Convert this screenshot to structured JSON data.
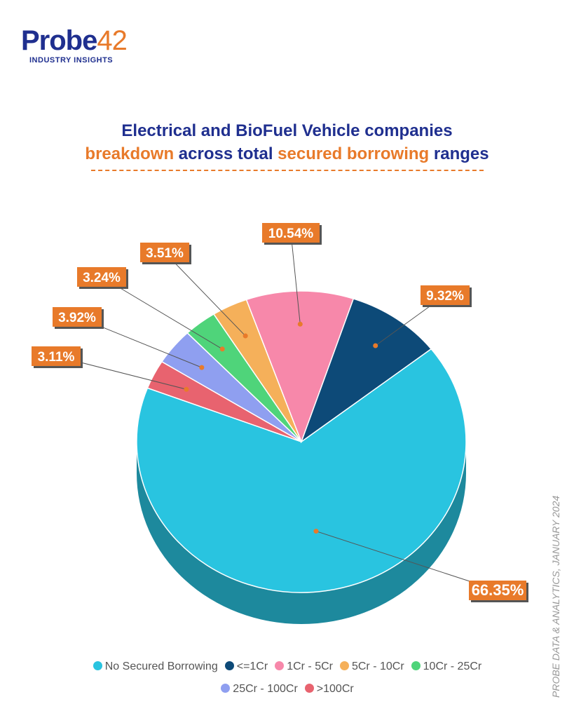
{
  "logo": {
    "name": "Probe",
    "number": "42",
    "tagline": "INDUSTRY INSIGHTS"
  },
  "title": {
    "part1": "Electrical and BioFuel Vehicle companies",
    "part2_hl": "breakdown",
    "part2": " across total ",
    "part2_hl2": "secured borrowing",
    "part2_end": " ranges"
  },
  "source": "PROBE DATA & ANALYTICS, JANUARY 2024",
  "chart_data": {
    "type": "pie",
    "title": "Electrical and BioFuel Vehicle companies breakdown across total secured borrowing ranges",
    "legend_position": "bottom",
    "slices": [
      {
        "name": "No Secured Borrowing",
        "value": 66.35,
        "label": "66.35%",
        "color": "#29c4e0"
      },
      {
        "name": ">100Cr",
        "value": 3.11,
        "label": "3.11%",
        "color": "#e8636f"
      },
      {
        "name": "25Cr - 100Cr",
        "value": 3.92,
        "label": "3.92%",
        "color": "#8f9ff0"
      },
      {
        "name": "10Cr - 25Cr",
        "value": 3.24,
        "label": "3.24%",
        "color": "#4fd47a"
      },
      {
        "name": "5Cr - 10Cr",
        "value": 3.51,
        "label": "3.51%",
        "color": "#f5b05a"
      },
      {
        "name": "1Cr - 5Cr",
        "value": 10.54,
        "label": "10.54%",
        "color": "#f788aa"
      },
      {
        "name": "<=1Cr",
        "value": 9.32,
        "label": "9.32%",
        "color": "#0d4a78"
      }
    ],
    "legend_order": [
      "No Secured Borrowing",
      "<=1Cr",
      "1Cr - 5Cr",
      "5Cr - 10Cr",
      "10Cr - 25Cr",
      "25Cr - 100Cr",
      ">100Cr"
    ]
  }
}
